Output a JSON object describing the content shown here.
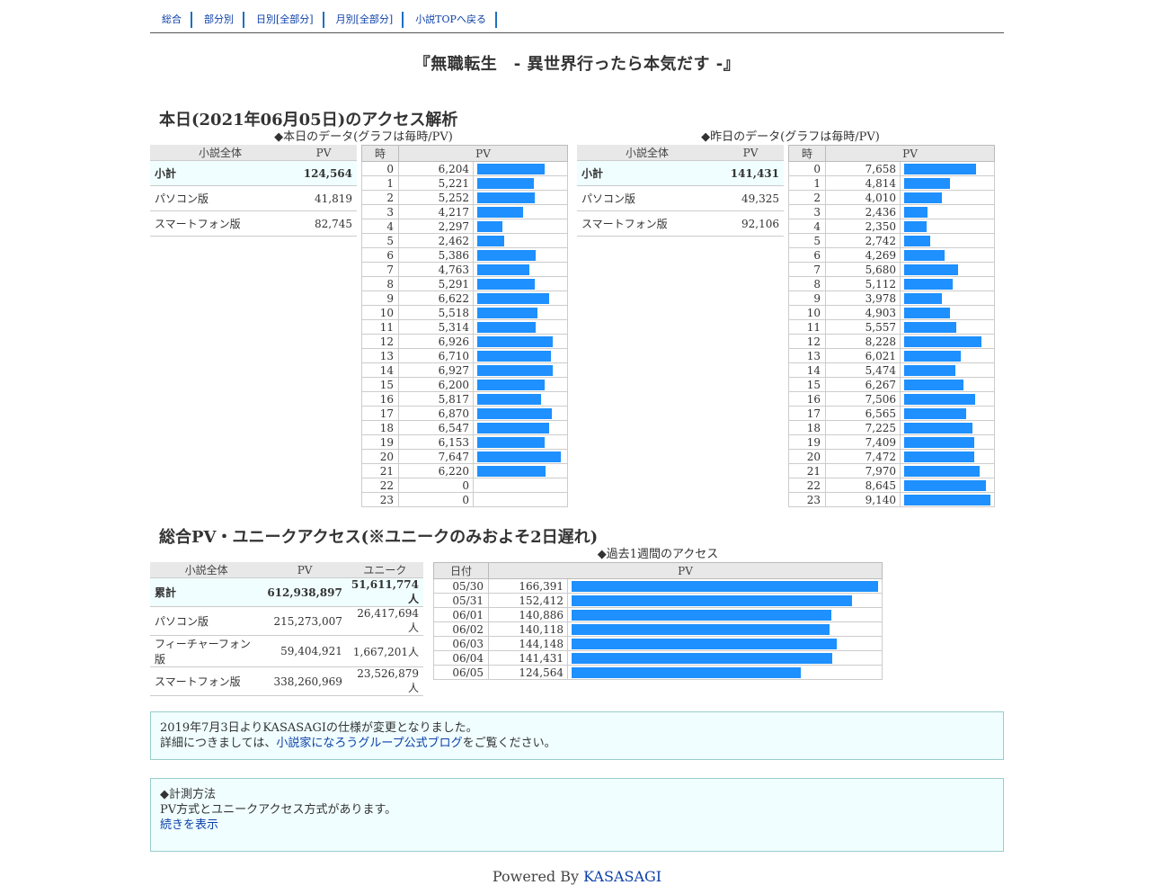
{
  "nav": [
    "総合",
    "部分別",
    "日別[全部分]",
    "月別[全部分]",
    "小説TOPへ戻る"
  ],
  "novel_title": "『無職転生　- 異世界行ったら本気だす -』",
  "today_section": {
    "heading": "本日(2021年06月05日)のアクセス解析",
    "today_caption": "◆本日のデータ(グラフは毎時/PV)",
    "yesterday_caption": "◆昨日のデータ(グラフは毎時/PV)",
    "sum_headers": [
      "小説全体",
      "PV"
    ],
    "hour_headers": [
      "時",
      "PV"
    ],
    "today_summary": [
      {
        "label": "小計",
        "pv": "124,564"
      },
      {
        "label": "パソコン版",
        "pv": "41,819"
      },
      {
        "label": "スマートフォン版",
        "pv": "82,745"
      }
    ],
    "yesterday_summary": [
      {
        "label": "小計",
        "pv": "141,431"
      },
      {
        "label": "パソコン版",
        "pv": "49,325"
      },
      {
        "label": "スマートフォン版",
        "pv": "92,106"
      }
    ],
    "today_hours": [
      {
        "h": "0",
        "pv": "6,204",
        "v": 6204
      },
      {
        "h": "1",
        "pv": "5,221",
        "v": 5221
      },
      {
        "h": "2",
        "pv": "5,252",
        "v": 5252
      },
      {
        "h": "3",
        "pv": "4,217",
        "v": 4217
      },
      {
        "h": "4",
        "pv": "2,297",
        "v": 2297
      },
      {
        "h": "5",
        "pv": "2,462",
        "v": 2462
      },
      {
        "h": "6",
        "pv": "5,386",
        "v": 5386
      },
      {
        "h": "7",
        "pv": "4,763",
        "v": 4763
      },
      {
        "h": "8",
        "pv": "5,291",
        "v": 5291
      },
      {
        "h": "9",
        "pv": "6,622",
        "v": 6622
      },
      {
        "h": "10",
        "pv": "5,518",
        "v": 5518
      },
      {
        "h": "11",
        "pv": "5,314",
        "v": 5314
      },
      {
        "h": "12",
        "pv": "6,926",
        "v": 6926
      },
      {
        "h": "13",
        "pv": "6,710",
        "v": 6710
      },
      {
        "h": "14",
        "pv": "6,927",
        "v": 6927
      },
      {
        "h": "15",
        "pv": "6,200",
        "v": 6200
      },
      {
        "h": "16",
        "pv": "5,817",
        "v": 5817
      },
      {
        "h": "17",
        "pv": "6,870",
        "v": 6870
      },
      {
        "h": "18",
        "pv": "6,547",
        "v": 6547
      },
      {
        "h": "19",
        "pv": "6,153",
        "v": 6153
      },
      {
        "h": "20",
        "pv": "7,647",
        "v": 7647
      },
      {
        "h": "21",
        "pv": "6,220",
        "v": 6220
      },
      {
        "h": "22",
        "pv": "0",
        "v": 0
      },
      {
        "h": "23",
        "pv": "0",
        "v": 0
      }
    ],
    "yesterday_hours": [
      {
        "h": "0",
        "pv": "7,658",
        "v": 7658
      },
      {
        "h": "1",
        "pv": "4,814",
        "v": 4814
      },
      {
        "h": "2",
        "pv": "4,010",
        "v": 4010
      },
      {
        "h": "3",
        "pv": "2,436",
        "v": 2436
      },
      {
        "h": "4",
        "pv": "2,350",
        "v": 2350
      },
      {
        "h": "5",
        "pv": "2,742",
        "v": 2742
      },
      {
        "h": "6",
        "pv": "4,269",
        "v": 4269
      },
      {
        "h": "7",
        "pv": "5,680",
        "v": 5680
      },
      {
        "h": "8",
        "pv": "5,112",
        "v": 5112
      },
      {
        "h": "9",
        "pv": "3,978",
        "v": 3978
      },
      {
        "h": "10",
        "pv": "4,903",
        "v": 4903
      },
      {
        "h": "11",
        "pv": "5,557",
        "v": 5557
      },
      {
        "h": "12",
        "pv": "8,228",
        "v": 8228
      },
      {
        "h": "13",
        "pv": "6,021",
        "v": 6021
      },
      {
        "h": "14",
        "pv": "5,474",
        "v": 5474
      },
      {
        "h": "15",
        "pv": "6,267",
        "v": 6267
      },
      {
        "h": "16",
        "pv": "7,506",
        "v": 7506
      },
      {
        "h": "17",
        "pv": "6,565",
        "v": 6565
      },
      {
        "h": "18",
        "pv": "7,225",
        "v": 7225
      },
      {
        "h": "19",
        "pv": "7,409",
        "v": 7409
      },
      {
        "h": "20",
        "pv": "7,472",
        "v": 7472
      },
      {
        "h": "21",
        "pv": "7,970",
        "v": 7970
      },
      {
        "h": "22",
        "pv": "8,645",
        "v": 8645
      },
      {
        "h": "23",
        "pv": "9,140",
        "v": 9140
      }
    ]
  },
  "total_section": {
    "heading": "総合PV・ユニークアクセス(※ユニークのみおよそ2日遅れ)",
    "week_caption": "◆過去1週間のアクセス",
    "sum_headers": [
      "小説全体",
      "PV",
      "ユニーク"
    ],
    "week_headers": [
      "日付",
      "PV"
    ],
    "summary": [
      {
        "label": "累計",
        "pv": "612,938,897",
        "unique": "51,611,774人"
      },
      {
        "label": "パソコン版",
        "pv": "215,273,007",
        "unique": "26,417,694人"
      },
      {
        "label": "フィーチャーフォン版",
        "pv": "59,404,921",
        "unique": "1,667,201人"
      },
      {
        "label": "スマートフォン版",
        "pv": "338,260,969",
        "unique": "23,526,879人"
      }
    ],
    "week": [
      {
        "d": "05/30",
        "pv": "166,391",
        "v": 166391
      },
      {
        "d": "05/31",
        "pv": "152,412",
        "v": 152412
      },
      {
        "d": "06/01",
        "pv": "140,886",
        "v": 140886
      },
      {
        "d": "06/02",
        "pv": "140,118",
        "v": 140118
      },
      {
        "d": "06/03",
        "pv": "144,148",
        "v": 144148
      },
      {
        "d": "06/04",
        "pv": "141,431",
        "v": 141431
      },
      {
        "d": "06/05",
        "pv": "124,564",
        "v": 124564
      }
    ]
  },
  "notice": {
    "line1": "2019年7月3日よりKASASAGIの仕様が変更となりました。",
    "line2_pre": "詳細につきましては、",
    "line2_link": "小説家になろうグループ公式ブログ",
    "line2_post": "をご覧ください。"
  },
  "method": {
    "title": "◆計測方法",
    "text": "PV方式とユニークアクセス方式があります。",
    "link": "続きを表示"
  },
  "footer": {
    "powered": "Powered By ",
    "link": "KASASAGI"
  },
  "colors": {
    "bar": "#1e90ff",
    "highlight_row": "#f0feff",
    "link": "#0b3fa8"
  }
}
